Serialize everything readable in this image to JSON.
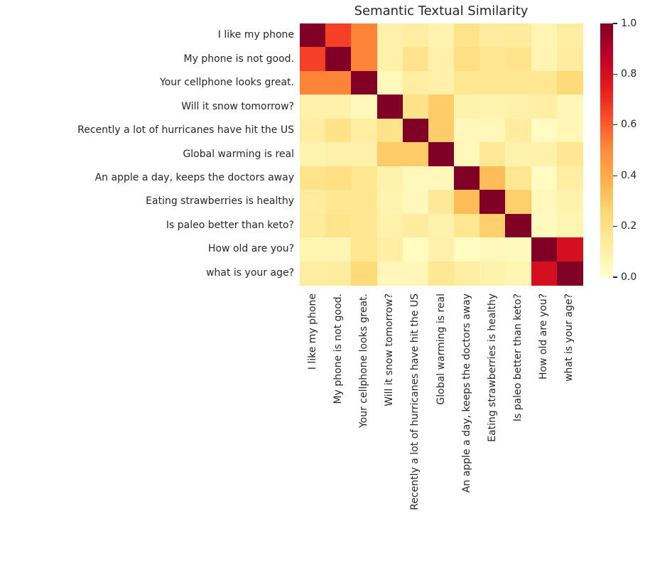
{
  "title": "Semantic Textual Similarity",
  "colors": {
    "background": "#ffffff",
    "text": "#262626",
    "colormap_low": "#ffffcc",
    "colormap_high": "#800026"
  },
  "chart_data": {
    "type": "heatmap",
    "title": "Semantic Textual Similarity",
    "xlabel": "",
    "ylabel": "",
    "grid": false,
    "value_range": [
      0.0,
      1.0
    ],
    "colormap": "YlOrRd",
    "colormap_stops": [
      {
        "pos": 0.0,
        "color": "#ffffcc"
      },
      {
        "pos": 0.125,
        "color": "#ffeda0"
      },
      {
        "pos": 0.25,
        "color": "#fed976"
      },
      {
        "pos": 0.375,
        "color": "#feb24c"
      },
      {
        "pos": 0.5,
        "color": "#fd8d3c"
      },
      {
        "pos": 0.625,
        "color": "#fc4e2a"
      },
      {
        "pos": 0.75,
        "color": "#e31a1c"
      },
      {
        "pos": 0.875,
        "color": "#bd0026"
      },
      {
        "pos": 1.0,
        "color": "#800026"
      }
    ],
    "labels": [
      "I like my phone",
      "My phone is not good.",
      "Your cellphone looks great.",
      "Will it snow tomorrow?",
      "Recently a lot of hurricanes have hit the US",
      "Global warming is real",
      "An apple a day, keeps the doctors away",
      "Eating strawberries is healthy",
      "Is paleo better than keto?",
      "How old are you?",
      "what is your age?"
    ],
    "values": [
      [
        1.0,
        0.66,
        0.52,
        0.1,
        0.12,
        0.08,
        0.19,
        0.13,
        0.14,
        0.07,
        0.12
      ],
      [
        0.66,
        1.0,
        0.52,
        0.1,
        0.19,
        0.1,
        0.21,
        0.17,
        0.18,
        0.07,
        0.13
      ],
      [
        0.52,
        0.52,
        1.0,
        0.05,
        0.12,
        0.1,
        0.17,
        0.17,
        0.17,
        0.17,
        0.24
      ],
      [
        0.1,
        0.1,
        0.05,
        1.0,
        0.19,
        0.29,
        0.09,
        0.08,
        0.1,
        0.11,
        0.06
      ],
      [
        0.12,
        0.19,
        0.12,
        0.19,
        1.0,
        0.29,
        0.05,
        0.05,
        0.13,
        0.03,
        0.06
      ],
      [
        0.08,
        0.1,
        0.1,
        0.29,
        0.29,
        1.0,
        0.05,
        0.15,
        0.09,
        0.1,
        0.16
      ],
      [
        0.19,
        0.21,
        0.17,
        0.09,
        0.05,
        0.05,
        1.0,
        0.34,
        0.17,
        0.03,
        0.12
      ],
      [
        0.13,
        0.17,
        0.17,
        0.08,
        0.05,
        0.15,
        0.34,
        1.0,
        0.28,
        0.05,
        0.09
      ],
      [
        0.14,
        0.18,
        0.17,
        0.1,
        0.13,
        0.09,
        0.17,
        0.28,
        1.0,
        0.04,
        0.07
      ],
      [
        0.07,
        0.07,
        0.17,
        0.11,
        0.03,
        0.1,
        0.03,
        0.05,
        0.04,
        1.0,
        0.8
      ],
      [
        0.12,
        0.13,
        0.24,
        0.06,
        0.06,
        0.16,
        0.12,
        0.09,
        0.07,
        0.8,
        1.0
      ]
    ],
    "colorbar": {
      "tick_labels": [
        "0.0",
        "0.2",
        "0.4",
        "0.6",
        "0.8",
        "1.0"
      ],
      "tick_values": [
        0.0,
        0.2,
        0.4,
        0.6,
        0.8,
        1.0
      ],
      "position": "right"
    },
    "legend": "none",
    "x_tick_rotation_deg": 90
  }
}
